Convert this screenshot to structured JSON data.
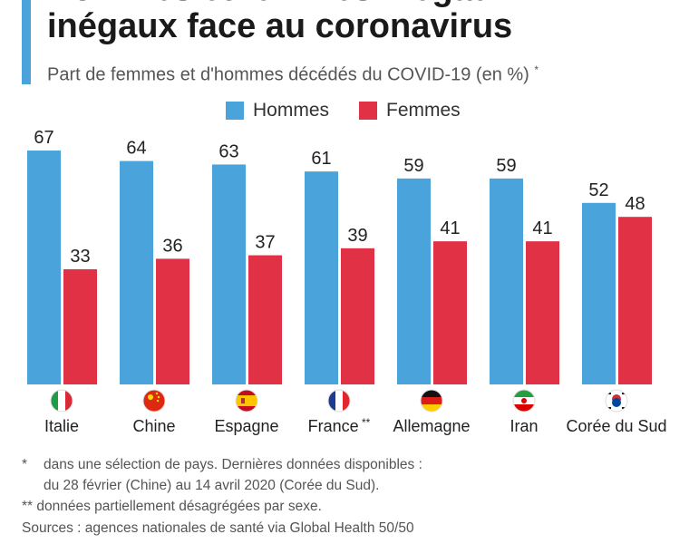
{
  "header": {
    "title_line1": "Hommes et femmes inégaux",
    "title_line2": "inégaux face au coronavirus",
    "subtitle": "Part de femmes et d'hommes décédés du COVID-19 (en %)",
    "subtitle_mark": "*"
  },
  "colors": {
    "accent": "#4aa3db",
    "hommes": "#4aa3db",
    "femmes": "#e03244"
  },
  "chart_data": {
    "type": "bar",
    "categories": [
      "Italie",
      "Chine",
      "Espagne",
      "France **",
      "Allemagne",
      "Iran",
      "Corée du Sud"
    ],
    "series": [
      {
        "name": "Hommes",
        "values": [
          67,
          64,
          63,
          61,
          59,
          59,
          52
        ]
      },
      {
        "name": "Femmes",
        "values": [
          33,
          36,
          37,
          39,
          41,
          41,
          48
        ]
      }
    ],
    "ylim": [
      0,
      70
    ],
    "grid": false,
    "legend": "top-center",
    "flags": [
      "italy-flag-icon",
      "china-flag-icon",
      "spain-flag-icon",
      "france-flag-icon",
      "germany-flag-icon",
      "iran-flag-icon",
      "south-korea-flag-icon"
    ]
  },
  "footnotes": {
    "note1_mark": "*",
    "note1_line1": "dans une sélection de pays. Dernières données disponibles :",
    "note1_line2": "du 28 février (Chine) au 14 avril 2020 (Corée du Sud).",
    "note2": "** données partiellement désagrégées par sexe.",
    "sources": "Sources : agences nationales de santé via Global Health 50/50"
  }
}
